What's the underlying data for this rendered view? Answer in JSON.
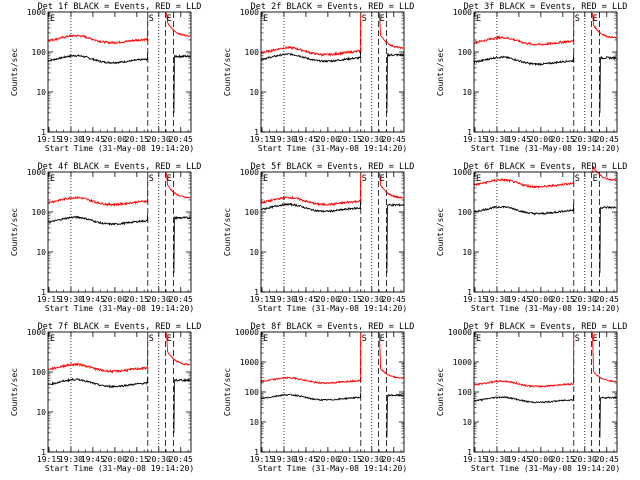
{
  "figure": {
    "x_tick_labels": [
      "19:15",
      "19:30",
      "19:45",
      "20:00",
      "20:15",
      "20:30",
      "20:45"
    ],
    "y_tick_labels": [
      "1",
      "10",
      "100",
      "1000"
    ],
    "y_tick_labels_big": [
      "1",
      "10",
      "100",
      "1000",
      "10000"
    ],
    "ylabel": "Counts/sec",
    "xlabel": "Start Time (31-May-08 19:14:20)",
    "marker_labels": [
      "E",
      "S",
      "E"
    ]
  },
  "chart_data": [
    {
      "type": "line",
      "title": "Det 1f BLACK = Events, RED = LLD",
      "ylog": true,
      "ylim": [
        1,
        1000
      ],
      "xlim": [
        "19:14:20",
        "20:52:00"
      ],
      "series": [
        {
          "name": "Events",
          "color": "#000000",
          "level": 60
        },
        {
          "name": "LLD",
          "color": "#ff0000",
          "level": 190
        }
      ]
    },
    {
      "type": "line",
      "title": "Det 2f BLACK = Events, RED = LLD",
      "ylog": true,
      "ylim": [
        1,
        1000
      ],
      "xlim": [
        "19:14:20",
        "20:52:00"
      ],
      "series": [
        {
          "name": "Events",
          "color": "#000000",
          "level": 65
        },
        {
          "name": "LLD",
          "color": "#ff0000",
          "level": 95
        }
      ]
    },
    {
      "type": "line",
      "title": "Det 3f BLACK = Events, RED = LLD",
      "ylog": true,
      "ylim": [
        1,
        1000
      ],
      "xlim": [
        "19:14:20",
        "20:52:00"
      ],
      "series": [
        {
          "name": "Events",
          "color": "#000000",
          "level": 55
        },
        {
          "name": "LLD",
          "color": "#ff0000",
          "level": 170
        }
      ]
    },
    {
      "type": "line",
      "title": "Det 4f BLACK = Events, RED = LLD",
      "ylog": true,
      "ylim": [
        1,
        1000
      ],
      "xlim": [
        "19:14:20",
        "20:52:00"
      ],
      "series": [
        {
          "name": "Events",
          "color": "#000000",
          "level": 55
        },
        {
          "name": "LLD",
          "color": "#ff0000",
          "level": 170
        }
      ]
    },
    {
      "type": "line",
      "title": "Det 5f BLACK = Events, RED = LLD",
      "ylog": true,
      "ylim": [
        1,
        1000
      ],
      "xlim": [
        "19:14:20",
        "20:52:00"
      ],
      "series": [
        {
          "name": "Events",
          "color": "#000000",
          "level": 115
        },
        {
          "name": "LLD",
          "color": "#ff0000",
          "level": 170
        }
      ]
    },
    {
      "type": "line",
      "title": "Det 6f BLACK = Events, RED = LLD",
      "ylog": true,
      "ylim": [
        1,
        1000
      ],
      "xlim": [
        "19:14:20",
        "20:52:00"
      ],
      "series": [
        {
          "name": "Events",
          "color": "#000000",
          "level": 100
        },
        {
          "name": "LLD",
          "color": "#ff0000",
          "level": 470
        }
      ]
    },
    {
      "type": "line",
      "title": "Det 7f BLACK = Events, RED = LLD",
      "ylog": true,
      "ylim": [
        1,
        1000
      ],
      "xlim": [
        "19:14:20",
        "20:52:00"
      ],
      "series": [
        {
          "name": "Events",
          "color": "#000000",
          "level": 48
        },
        {
          "name": "LLD",
          "color": "#ff0000",
          "level": 115
        }
      ]
    },
    {
      "type": "line",
      "title": "Det 8f BLACK = Events, RED = LLD",
      "ylog": true,
      "ylim": [
        1,
        10000
      ],
      "xlim": [
        "19:14:20",
        "20:52:00"
      ],
      "series": [
        {
          "name": "Events",
          "color": "#000000",
          "level": 60
        },
        {
          "name": "LLD",
          "color": "#ff0000",
          "level": 220
        }
      ]
    },
    {
      "type": "line",
      "title": "Det 9f BLACK = Events, RED = LLD",
      "ylog": true,
      "ylim": [
        1,
        10000
      ],
      "xlim": [
        "19:14:20",
        "20:52:00"
      ],
      "series": [
        {
          "name": "Events",
          "color": "#000000",
          "level": 50
        },
        {
          "name": "LLD",
          "color": "#ff0000",
          "level": 170
        }
      ]
    }
  ]
}
